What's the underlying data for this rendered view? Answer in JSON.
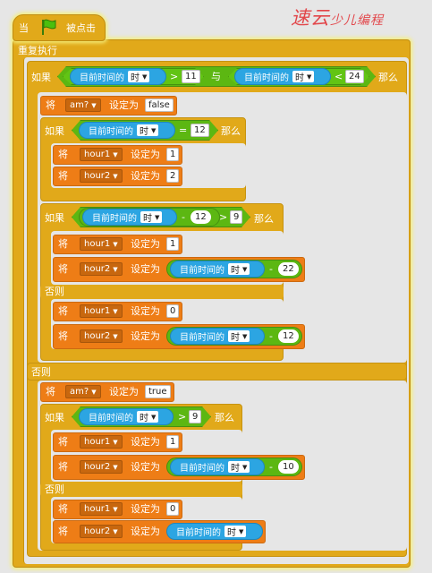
{
  "watermark": {
    "big": "速云",
    "small": "少儿编程"
  },
  "hat": {
    "prefix": "当",
    "flag_icon": "green-flag-icon",
    "suffix": "被点击"
  },
  "loop": {
    "label": "重复执行"
  },
  "words": {
    "if": "如果",
    "then": "那么",
    "else": "否则",
    "set_to": "设定为",
    "and": "与",
    "set_prefix": "将"
  },
  "sensor": {
    "label": "目前时间的",
    "unit": "时"
  },
  "vars": {
    "am": "am?",
    "hour1": "hour1",
    "hour2": "hour2"
  },
  "ops": {
    "gt": ">",
    "lt": "<",
    "eq": "=",
    "minus": "-"
  },
  "values": {
    "outer_gt": "11",
    "outer_lt": "24",
    "am_false": "false",
    "am_true": "true",
    "eq12": "12",
    "h1_a": "1",
    "h2_a": "2",
    "minus12": "12",
    "gt9_a": "9",
    "h1_b": "1",
    "minus22": "22",
    "h1_c": "0",
    "minus12_b": "12",
    "gt9_b": "9",
    "h1_d": "1",
    "minus10": "10",
    "h1_e": "0"
  },
  "colors": {
    "control": "#e1a91a",
    "data": "#ee7d16",
    "sensing": "#2ca5e2",
    "operator": "#5cb712",
    "glow": "#f6ef7a"
  }
}
